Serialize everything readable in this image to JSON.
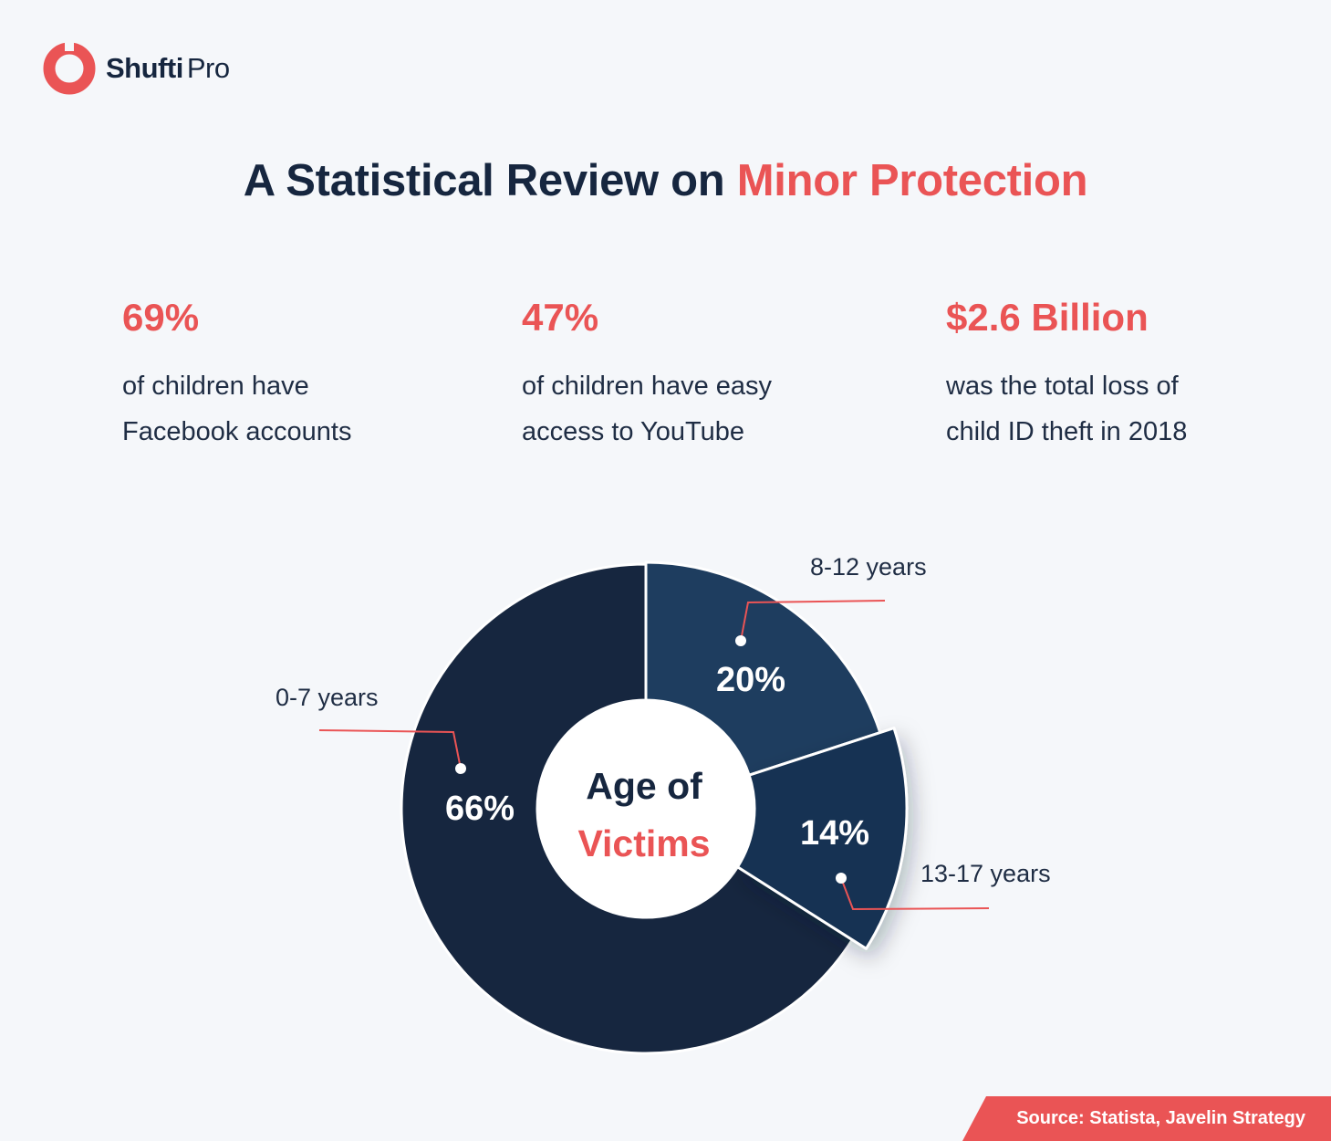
{
  "brand": {
    "name_bold": "Shufti",
    "name_light": "Pro",
    "logo_color": "#ea5455"
  },
  "title": {
    "prefix": "A Statistical Review on",
    "accent": "Minor Protection"
  },
  "stats": [
    {
      "value": "69%",
      "line1": "of children have",
      "line2": "Facebook accounts"
    },
    {
      "value": "47%",
      "line1": "of children have easy",
      "line2": "access to YouTube"
    },
    {
      "value": "$2.6 Billion",
      "line1": "was the total loss of",
      "line2": "child ID theft in 2018"
    }
  ],
  "chart_data": {
    "type": "pie",
    "style": "donut",
    "center_label": [
      "Age of",
      "Victims"
    ],
    "slices": [
      {
        "label": "8-12 years",
        "value": 20,
        "display": "20%",
        "color": "#1e3d5f"
      },
      {
        "label": "13-17 years",
        "value": 14,
        "display": "14%",
        "color": "#183352"
      },
      {
        "label": "0-7 years",
        "value": 66,
        "display": "66%",
        "color": "#16263f"
      }
    ],
    "accent_color": "#ea5455"
  },
  "source": "Source: Statista, Javelin Strategy"
}
